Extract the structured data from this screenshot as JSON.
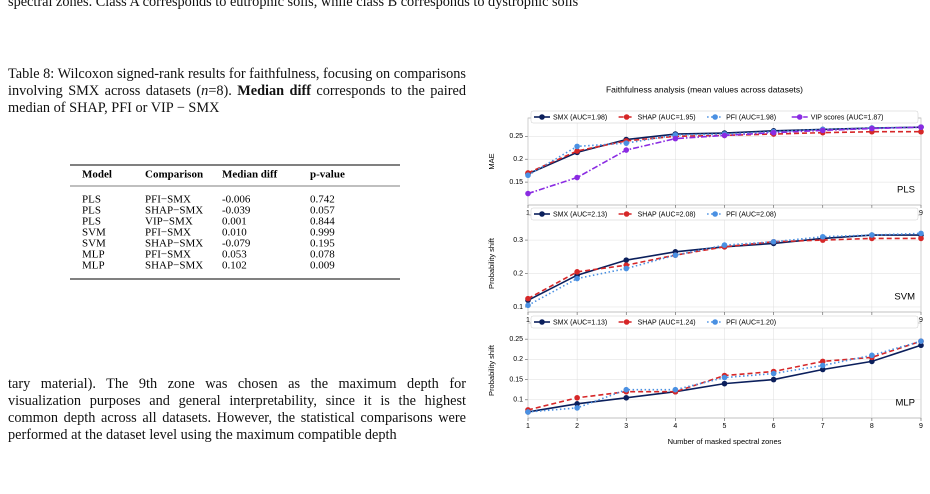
{
  "top_text": "spectral zones. Class A corresponds to eutrophic soils, while class B corresponds to dystrophic soils",
  "table": {
    "caption": [
      "Table 8: Wilcoxon signed-rank results for faithfulness, focusing on comparisons involving SMX across datasets (",
      "n",
      "=8). ",
      "Median diff",
      " corresponds to the paired median of SHAP, PFI or VIP − SMX"
    ],
    "header": [
      "Model",
      "Comparison",
      "Median diff",
      "p-value"
    ],
    "rows": [
      [
        "PLS",
        "PFI−SMX",
        "-0.006",
        "0.742"
      ],
      [
        "PLS",
        "SHAP−SMX",
        "-0.039",
        "0.057"
      ],
      [
        "PLS",
        "VIP−SMX",
        "0.001",
        "0.844"
      ],
      [
        "SVM",
        "PFI−SMX",
        "0.010",
        "0.999"
      ],
      [
        "SVM",
        "SHAP−SMX",
        "-0.079",
        "0.195"
      ],
      [
        "MLP",
        "PFI−SMX",
        "0.053",
        "0.078"
      ],
      [
        "MLP",
        "SHAP−SMX",
        "0.102",
        "0.009"
      ]
    ]
  },
  "paragraph": "tary material). The 9th zone was chosen as the maximum depth for visualization purposes and general interpretability, since it is the highest common depth across all datasets. However, the statistical comparisons were performed at the dataset level using the maximum compatible depth",
  "chart_data": [
    {
      "type": "line",
      "title": "Faithfulness analysis (mean values across datasets)",
      "ylabel": "MAE",
      "annotation": "PLS",
      "x": [
        1,
        2,
        3,
        4,
        5,
        6,
        7,
        8,
        9
      ],
      "xlim": [
        1,
        9
      ],
      "xticks": [
        1,
        2,
        3,
        4,
        5,
        6,
        7,
        8,
        9
      ],
      "ylim": [
        0.1,
        0.29
      ],
      "yticks": [
        0.15,
        0.2,
        0.25
      ],
      "grid": true,
      "series": [
        {
          "name": "SMX (AUC=1.98)",
          "color": "#0b1f5c",
          "dash": "solid",
          "values": [
            0.168,
            0.215,
            0.243,
            0.255,
            0.257,
            0.262,
            0.265,
            0.268,
            0.27
          ]
        },
        {
          "name": "SHAP (AUC=1.95)",
          "color": "#d62728",
          "dash": "dashed",
          "values": [
            0.17,
            0.218,
            0.24,
            0.25,
            0.252,
            0.255,
            0.258,
            0.26,
            0.26
          ]
        },
        {
          "name": "PFI (AUC=1.98)",
          "color": "#4a90e2",
          "dash": "dotted",
          "values": [
            0.165,
            0.228,
            0.235,
            0.253,
            0.255,
            0.26,
            0.265,
            0.268,
            0.27
          ]
        },
        {
          "name": "VIP scores (AUC=1.87)",
          "color": "#8a2be2",
          "dash": "dashdot",
          "values": [
            0.125,
            0.16,
            0.22,
            0.245,
            0.252,
            0.258,
            0.263,
            0.267,
            0.27
          ]
        }
      ]
    },
    {
      "type": "line",
      "ylabel": "Probability shift",
      "annotation": "SVM",
      "x": [
        1,
        2,
        3,
        4,
        5,
        6,
        7,
        8,
        9
      ],
      "xlim": [
        1,
        9
      ],
      "xticks": [
        1,
        2,
        3,
        4,
        5,
        6,
        7,
        8,
        9
      ],
      "ylim": [
        0.085,
        0.375
      ],
      "yticks": [
        0.1,
        0.2,
        0.3
      ],
      "grid": true,
      "series": [
        {
          "name": "SMX (AUC=2.13)",
          "color": "#0b1f5c",
          "dash": "solid",
          "values": [
            0.12,
            0.195,
            0.24,
            0.265,
            0.28,
            0.29,
            0.305,
            0.315,
            0.315
          ]
        },
        {
          "name": "SHAP (AUC=2.08)",
          "color": "#d62728",
          "dash": "dashed",
          "values": [
            0.125,
            0.205,
            0.225,
            0.255,
            0.28,
            0.295,
            0.3,
            0.305,
            0.305
          ]
        },
        {
          "name": "PFI (AUC=2.08)",
          "color": "#4a90e2",
          "dash": "dotted",
          "values": [
            0.105,
            0.185,
            0.215,
            0.255,
            0.285,
            0.295,
            0.31,
            0.315,
            0.32
          ]
        }
      ]
    },
    {
      "type": "line",
      "ylabel": "Probability shift",
      "xlabel": "Number of masked spectral zones",
      "annotation": "MLP",
      "x": [
        1,
        2,
        3,
        4,
        5,
        6,
        7,
        8,
        9
      ],
      "xlim": [
        1,
        9
      ],
      "xticks": [
        1,
        2,
        3,
        4,
        5,
        6,
        7,
        8,
        9
      ],
      "ylim": [
        0.055,
        0.29
      ],
      "yticks": [
        0.1,
        0.15,
        0.2,
        0.25
      ],
      "grid": true,
      "series": [
        {
          "name": "SMX (AUC=1.13)",
          "color": "#0b1f5c",
          "dash": "solid",
          "values": [
            0.07,
            0.09,
            0.105,
            0.12,
            0.14,
            0.15,
            0.175,
            0.195,
            0.235
          ]
        },
        {
          "name": "SHAP (AUC=1.24)",
          "color": "#d62728",
          "dash": "dashed",
          "values": [
            0.075,
            0.105,
            0.12,
            0.12,
            0.16,
            0.17,
            0.195,
            0.205,
            0.245
          ]
        },
        {
          "name": "PFI (AUC=1.20)",
          "color": "#4a90e2",
          "dash": "dotted",
          "values": [
            0.07,
            0.08,
            0.125,
            0.125,
            0.155,
            0.165,
            0.185,
            0.21,
            0.245
          ]
        }
      ]
    }
  ]
}
